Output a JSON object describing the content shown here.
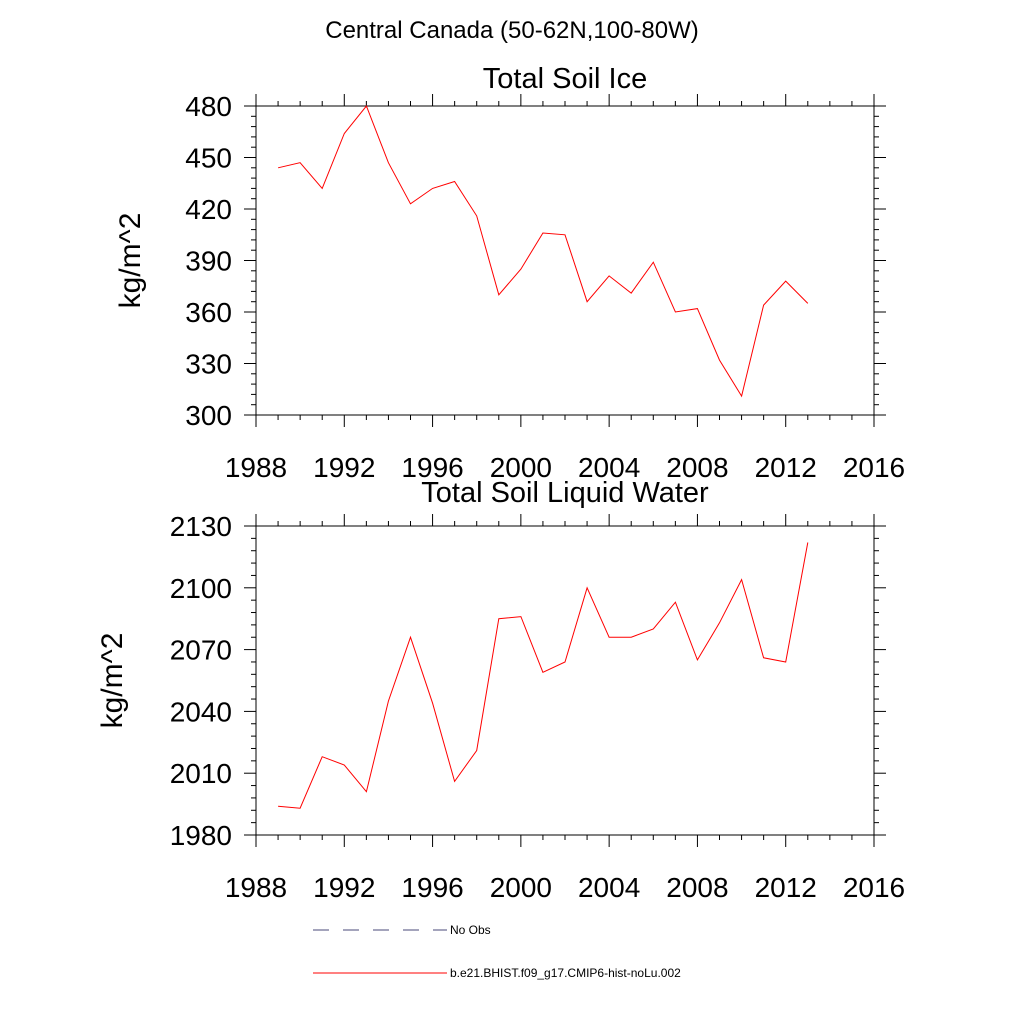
{
  "figure": {
    "title": "Central Canada (50-62N,100-80W)"
  },
  "chart_data": [
    {
      "type": "line",
      "title": "Total Soil Ice",
      "xlabel": "",
      "ylabel": "kg/m^2",
      "xlim": [
        1988,
        2016
      ],
      "ylim": [
        300,
        480
      ],
      "xticks": [
        1988,
        1992,
        1996,
        2000,
        2004,
        2008,
        2012,
        2016
      ],
      "yticks": [
        300,
        330,
        360,
        390,
        420,
        450,
        480
      ],
      "xtick_labels": [
        "1988",
        "1992",
        "1996",
        "2000",
        "2004",
        "2008",
        "2012",
        "2016"
      ],
      "ytick_labels": [
        "300",
        "330",
        "360",
        "390",
        "420",
        "450",
        "480"
      ],
      "grid": false,
      "series": [
        {
          "name": "b.e21.BHIST.f09_g17.CMIP6-hist-noLu.002",
          "color": "#ff0000",
          "x": [
            1989,
            1990,
            1991,
            1992,
            1993,
            1994,
            1995,
            1996,
            1997,
            1998,
            1999,
            2000,
            2001,
            2002,
            2003,
            2004,
            2005,
            2006,
            2007,
            2008,
            2009,
            2010,
            2011,
            2012,
            2013
          ],
          "y": [
            444,
            447,
            432,
            464,
            480,
            447,
            423,
            432,
            436,
            416,
            370,
            385,
            406,
            405,
            366,
            381,
            371,
            389,
            360,
            362,
            332,
            311,
            364,
            378,
            365
          ]
        }
      ]
    },
    {
      "type": "line",
      "title": "Total Soil Liquid Water",
      "xlabel": "",
      "ylabel": "kg/m^2",
      "xlim": [
        1988,
        2016
      ],
      "ylim": [
        1980,
        2130
      ],
      "xticks": [
        1988,
        1992,
        1996,
        2000,
        2004,
        2008,
        2012,
        2016
      ],
      "yticks": [
        1980,
        2010,
        2040,
        2070,
        2100,
        2130
      ],
      "xtick_labels": [
        "1988",
        "1992",
        "1996",
        "2000",
        "2004",
        "2008",
        "2012",
        "2016"
      ],
      "ytick_labels": [
        "1980",
        "2010",
        "2040",
        "2070",
        "2100",
        "2130"
      ],
      "grid": false,
      "series": [
        {
          "name": "b.e21.BHIST.f09_g17.CMIP6-hist-noLu.002",
          "color": "#ff0000",
          "x": [
            1989,
            1990,
            1991,
            1992,
            1993,
            1994,
            1995,
            1996,
            1997,
            1998,
            1999,
            2000,
            2001,
            2002,
            2003,
            2004,
            2005,
            2006,
            2007,
            2008,
            2009,
            2010,
            2011,
            2012,
            2013
          ],
          "y": [
            1994,
            1993,
            2018,
            2014,
            2001,
            2045,
            2076,
            2044,
            2006,
            2021,
            2085,
            2086,
            2059,
            2064,
            2100,
            2076,
            2076,
            2080,
            2093,
            2065,
            2083,
            2104,
            2066,
            2064,
            2122
          ]
        }
      ]
    }
  ],
  "legend": {
    "placement": "bottom",
    "items": [
      {
        "label": "No Obs",
        "color": "#4a4a7a",
        "dash": true
      },
      {
        "label": "b.e21.BHIST.f09_g17.CMIP6-hist-noLu.002",
        "color": "#ff0000",
        "dash": false
      }
    ]
  }
}
